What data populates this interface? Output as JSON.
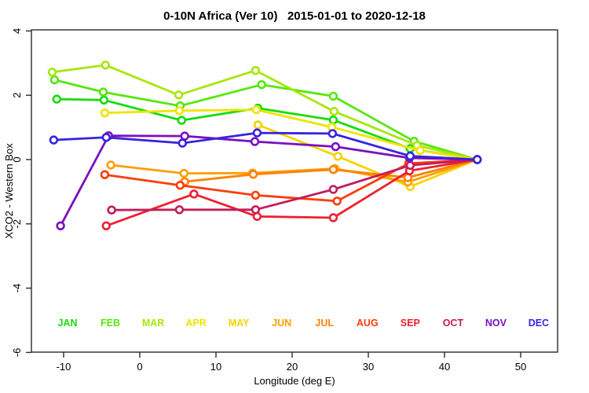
{
  "title": "0-10N Africa (Ver 10)   2015-01-01 to 2020-12-18",
  "chart_data": {
    "type": "line",
    "title": "0-10N Africa (Ver 10)   2015-01-01 to 2020-12-18",
    "xlabel": "Longitude (deg E)",
    "ylabel": "XCO2 - Western Box",
    "xlim": [
      -14.2,
      54.8
    ],
    "ylim": [
      -6,
      4.05
    ],
    "xticks": [
      -10,
      0,
      10,
      20,
      30,
      40,
      50
    ],
    "yticks": [
      4,
      2,
      0,
      -2,
      -4,
      -6
    ],
    "grid": false,
    "marker": "open-circle",
    "legend_position": "bottom-inside-row",
    "series": [
      {
        "name": "JAN",
        "color": "#17DC0A",
        "x": [
          -10.9,
          -4.7,
          5.5,
          15.5,
          25.4,
          35.5,
          44.3
        ],
        "y": [
          1.88,
          1.85,
          1.22,
          1.6,
          1.23,
          0.34,
          0.0
        ]
      },
      {
        "name": "FEB",
        "color": "#55E80C",
        "x": [
          -11.2,
          -4.8,
          5.3,
          16.0,
          25.4,
          36.0,
          44.3
        ],
        "y": [
          2.48,
          2.1,
          1.67,
          2.33,
          1.97,
          0.57,
          0.0
        ]
      },
      {
        "name": "MAR",
        "color": "#A8E60E",
        "x": [
          -11.5,
          -4.5,
          5.1,
          15.2,
          25.5,
          36.4,
          44.3
        ],
        "y": [
          2.72,
          2.94,
          2.01,
          2.77,
          1.5,
          0.44,
          0.0
        ]
      },
      {
        "name": "APR",
        "color": "#F0E400",
        "x": [
          -4.6,
          5.2,
          15.3,
          25.2,
          36.8,
          44.3
        ],
        "y": [
          1.45,
          1.52,
          1.55,
          1.01,
          0.28,
          0.0
        ]
      },
      {
        "name": "MAY",
        "color": "#F6D300",
        "x": [
          15.5,
          26.0,
          35.5,
          44.3
        ],
        "y": [
          1.08,
          0.1,
          -0.84,
          0.0
        ]
      },
      {
        "name": "JUN",
        "color": "#FF9E00",
        "x": [
          -3.8,
          5.8,
          14.8,
          25.6,
          35.2,
          44.3
        ],
        "y": [
          -0.17,
          -0.43,
          -0.42,
          -0.28,
          -0.7,
          0.0
        ]
      },
      {
        "name": "JUL",
        "color": "#FF8300",
        "x": [
          5.9,
          14.9,
          25.4,
          35.2,
          44.3
        ],
        "y": [
          -0.69,
          -0.46,
          -0.31,
          -0.56,
          0.0
        ]
      },
      {
        "name": "AUG",
        "color": "#FC3D08",
        "x": [
          -4.6,
          5.3,
          15.2,
          25.9,
          35.3,
          44.3
        ],
        "y": [
          -0.47,
          -0.8,
          -1.11,
          -1.29,
          -0.12,
          0.0
        ]
      },
      {
        "name": "SEP",
        "color": "#EE2030",
        "x": [
          -4.4,
          7.1,
          15.4,
          25.4,
          35.4,
          44.3
        ],
        "y": [
          -2.06,
          -1.07,
          -1.77,
          -1.81,
          -0.35,
          0.0
        ]
      },
      {
        "name": "OCT",
        "color": "#C31D5B",
        "x": [
          -3.7,
          5.2,
          15.2,
          25.4,
          35.5,
          44.3
        ],
        "y": [
          -1.57,
          -1.56,
          -1.56,
          -0.93,
          -0.18,
          0.0
        ]
      },
      {
        "name": "NOV",
        "color": "#7A10BE",
        "x": [
          -10.4,
          -4.1,
          5.9,
          15.1,
          25.7,
          35.4,
          44.3
        ],
        "y": [
          -2.06,
          0.74,
          0.73,
          0.56,
          0.4,
          0.05,
          0.0
        ]
      },
      {
        "name": "DEC",
        "color": "#3823E1",
        "x": [
          -11.3,
          -4.4,
          5.6,
          15.4,
          25.3,
          35.5,
          44.3
        ],
        "y": [
          0.61,
          0.69,
          0.51,
          0.83,
          0.81,
          0.11,
          0.0
        ]
      }
    ]
  },
  "legend_months": [
    "JAN",
    "FEB",
    "MAR",
    "APR",
    "MAY",
    "JUN",
    "JUL",
    "AUG",
    "SEP",
    "OCT",
    "NOV",
    "DEC"
  ]
}
